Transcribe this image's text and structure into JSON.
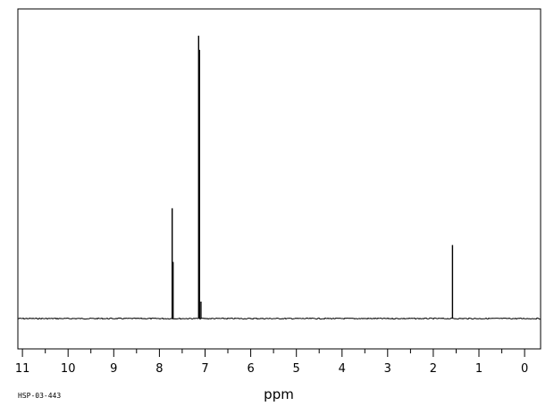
{
  "sample_id": "HSP-03-443",
  "chart_data": {
    "type": "line",
    "title": "",
    "xlabel": "ppm",
    "ylabel": "",
    "xlim": [
      11.1,
      -0.35
    ],
    "ylim": [
      0,
      1
    ],
    "x_reversed": true,
    "grid": false,
    "legend": "none",
    "x_ticks": [
      11,
      10,
      9,
      8,
      7,
      6,
      5,
      4,
      3,
      2,
      1,
      0
    ],
    "peaks": [
      {
        "ppm": 7.72,
        "intensity": 0.39
      },
      {
        "ppm": 7.7,
        "intensity": 0.2
      },
      {
        "ppm": 7.14,
        "intensity": 1.0
      },
      {
        "ppm": 7.12,
        "intensity": 0.95
      },
      {
        "ppm": 7.09,
        "intensity": 0.06
      },
      {
        "ppm": 1.58,
        "intensity": 0.26
      }
    ],
    "line_color": "#000000"
  }
}
